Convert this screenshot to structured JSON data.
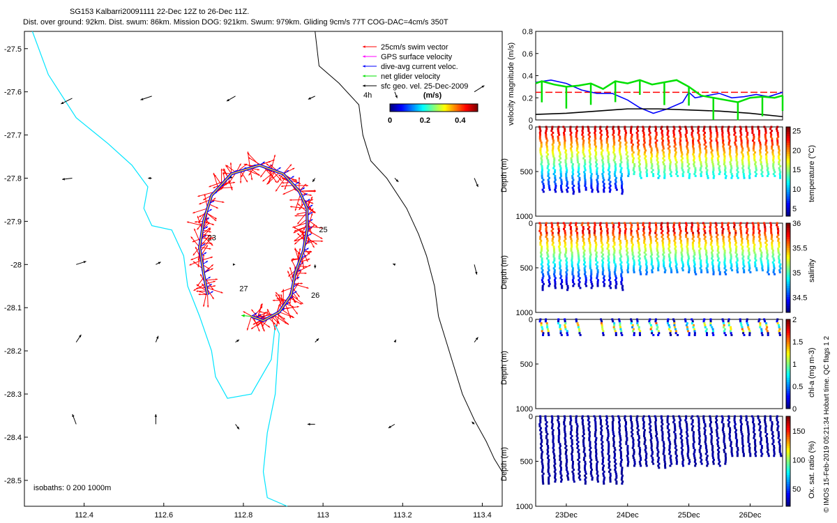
{
  "title": {
    "line1": "SG153 Kalbarri20091111 22-Dec 12Z to 26-Dec 11Z.",
    "line2": "Dist. over ground: 92km. Dist. swum: 86km. Mission DOG: 921km. Swum: 979km. Gliding 9cm/s 77T COG-DAC=4cm/s 350T"
  },
  "watermark": "© IMOS 15-Feb-2019 05:21:34 Hobart time. QC flags 1 2",
  "colors": {
    "coast": "#00e5ff",
    "swim": "#ff0000",
    "gps": "#ff00ff",
    "dac": "#0000ff",
    "net": "#00e000",
    "geo": "#000000",
    "track": "#ffd21a",
    "vel_red": "#ff0000"
  },
  "chart_data": [
    {
      "type": "scatter",
      "id": "map",
      "xlim": [
        112.25,
        113.45
      ],
      "ylim": [
        -28.56,
        -27.46
      ],
      "xticks": [
        "112.4",
        "112.6",
        "112.8",
        "113",
        "113.2",
        "113.4"
      ],
      "yticks": [
        "-27.5",
        "-27.6",
        "-27.7",
        "-27.8",
        "-27.9",
        "-28",
        "-28.1",
        "-28.2",
        "-28.3",
        "-28.4",
        "-28.5"
      ],
      "legend": [
        {
          "label": "25cm/s swim vector",
          "color": "#ff0000"
        },
        {
          "label": "GPS surface velocity",
          "color": "#ff00ff"
        },
        {
          "label": "dive-avg current veloc.",
          "color": "#0000ff"
        },
        {
          "label": "net glider velocity",
          "color": "#00e000"
        },
        {
          "label": "sfc geo. vel. 25-Dec-2009",
          "color": "#000000"
        }
      ],
      "legend_note": "4h",
      "colorbar": {
        "title": "(m/s)",
        "ticks": [
          "0",
          "0.2",
          "0.4"
        ],
        "range": [
          0,
          0.5
        ]
      },
      "isobaths_label": "isobaths: 0   200  1000m",
      "day_labels": [
        {
          "text": "23",
          "lon": 112.71,
          "lat": -27.944
        },
        {
          "text": "25",
          "lon": 112.99,
          "lat": -27.925
        },
        {
          "text": "27",
          "lon": 112.79,
          "lat": -28.062
        },
        {
          "text": "26",
          "lon": 112.97,
          "lat": -28.077
        }
      ],
      "coastline": [
        [
          112.27,
          -27.46
        ],
        [
          112.31,
          -27.56
        ],
        [
          112.38,
          -27.66
        ],
        [
          112.46,
          -27.72
        ],
        [
          112.52,
          -27.77
        ],
        [
          112.56,
          -27.82
        ],
        [
          112.55,
          -27.87
        ],
        [
          112.57,
          -27.91
        ],
        [
          112.62,
          -27.92
        ],
        [
          112.65,
          -27.98
        ],
        [
          112.66,
          -28.05
        ],
        [
          112.69,
          -28.12
        ],
        [
          112.72,
          -28.2
        ],
        [
          112.73,
          -28.26
        ],
        [
          112.76,
          -28.31
        ],
        [
          112.82,
          -28.3
        ],
        [
          112.87,
          -28.22
        ],
        [
          112.88,
          -28.14
        ],
        [
          112.89,
          -28.16
        ],
        [
          112.88,
          -28.3
        ],
        [
          112.86,
          -28.39
        ],
        [
          112.85,
          -28.48
        ],
        [
          112.86,
          -28.54
        ],
        [
          112.91,
          -28.56
        ]
      ],
      "isobath_1000": [
        [
          112.98,
          -27.46
        ],
        [
          112.99,
          -27.54
        ],
        [
          113.04,
          -27.58
        ],
        [
          113.09,
          -27.63
        ],
        [
          113.1,
          -27.7
        ],
        [
          113.12,
          -27.76
        ],
        [
          113.16,
          -27.8
        ],
        [
          113.21,
          -27.87
        ],
        [
          113.24,
          -27.93
        ],
        [
          113.26,
          -27.98
        ],
        [
          113.28,
          -28.05
        ],
        [
          113.29,
          -28.12
        ],
        [
          113.31,
          -28.18
        ],
        [
          113.33,
          -28.24
        ],
        [
          113.35,
          -28.3
        ],
        [
          113.38,
          -28.36
        ],
        [
          113.41,
          -28.41
        ],
        [
          113.43,
          -28.45
        ],
        [
          113.45,
          -28.48
        ]
      ],
      "glider_track": [
        [
          112.71,
          -28.07
        ],
        [
          112.7,
          -28.02
        ],
        [
          112.69,
          -27.96
        ],
        [
          112.7,
          -27.9
        ],
        [
          112.72,
          -27.84
        ],
        [
          112.77,
          -27.79
        ],
        [
          112.84,
          -27.77
        ],
        [
          112.9,
          -27.79
        ],
        [
          112.94,
          -27.83
        ],
        [
          112.96,
          -27.87
        ],
        [
          112.96,
          -27.92
        ],
        [
          112.95,
          -27.97
        ],
        [
          112.93,
          -28.02
        ],
        [
          112.92,
          -28.07
        ],
        [
          112.89,
          -28.11
        ],
        [
          112.85,
          -28.13
        ],
        [
          112.82,
          -28.12
        ]
      ],
      "geo_vectors": [
        {
          "lon": 112.37,
          "lat": -27.615,
          "u": 0.9,
          "v": -0.45
        },
        {
          "lon": 112.57,
          "lat": -27.61,
          "u": 0.9,
          "v": -0.3
        },
        {
          "lon": 112.78,
          "lat": -27.61,
          "u": 0.7,
          "v": -0.4
        },
        {
          "lon": 112.98,
          "lat": -27.61,
          "u": 0.55,
          "v": -0.25
        },
        {
          "lon": 113.18,
          "lat": -27.6,
          "u": -0.2,
          "v": -0.5
        },
        {
          "lon": 113.38,
          "lat": -27.6,
          "u": -0.8,
          "v": 0.5
        },
        {
          "lon": 112.37,
          "lat": -27.8,
          "u": 0.8,
          "v": -0.1
        },
        {
          "lon": 112.57,
          "lat": -27.8,
          "u": 0.3,
          "v": 0
        },
        {
          "lon": 112.77,
          "lat": -27.8,
          "u": 0.1,
          "v": 0.2
        },
        {
          "lon": 112.98,
          "lat": -27.8,
          "u": 0.2,
          "v": -0.3
        },
        {
          "lon": 113.18,
          "lat": -27.8,
          "u": -0.3,
          "v": -0.3
        },
        {
          "lon": 113.38,
          "lat": -27.8,
          "u": -0.3,
          "v": -0.7
        },
        {
          "lon": 112.38,
          "lat": -28,
          "u": -0.8,
          "v": 0.25
        },
        {
          "lon": 112.58,
          "lat": -28,
          "u": -0.4,
          "v": 0.2
        },
        {
          "lon": 112.78,
          "lat": -28,
          "u": 0,
          "v": 0
        },
        {
          "lon": 112.98,
          "lat": -28,
          "u": 0,
          "v": -0.3
        },
        {
          "lon": 113.18,
          "lat": -28,
          "u": 0.15,
          "v": 0.05
        },
        {
          "lon": 113.38,
          "lat": -28,
          "u": -0.2,
          "v": -0.8
        },
        {
          "lon": 112.38,
          "lat": -28.18,
          "u": -0.4,
          "v": 0.6
        },
        {
          "lon": 112.58,
          "lat": -28.18,
          "u": -0.2,
          "v": 0.5
        },
        {
          "lon": 112.78,
          "lat": -28.18,
          "u": -0.3,
          "v": 0.2
        },
        {
          "lon": 112.98,
          "lat": -28.18,
          "u": -0.3,
          "v": 0.3
        },
        {
          "lon": 113.18,
          "lat": -28.18,
          "u": -0.1,
          "v": 0.2
        },
        {
          "lon": 113.38,
          "lat": -28.18,
          "u": -0.3,
          "v": 0.4
        },
        {
          "lon": 112.38,
          "lat": -28.37,
          "u": 0.3,
          "v": 0.8
        },
        {
          "lon": 112.58,
          "lat": -28.37,
          "u": 0,
          "v": 0.8
        },
        {
          "lon": 112.78,
          "lat": -28.37,
          "u": -0.3,
          "v": -0.4
        },
        {
          "lon": 112.98,
          "lat": -28.37,
          "u": 0.6,
          "v": 0
        },
        {
          "lon": 113.18,
          "lat": -28.37,
          "u": 0.5,
          "v": -0.3
        },
        {
          "lon": 113.38,
          "lat": -28.37,
          "u": 0.2,
          "v": 0.2
        }
      ]
    },
    {
      "type": "line",
      "id": "velocity",
      "ylabel": "velocity magnitude (m/s)",
      "xlim": [
        22.5,
        26.53
      ],
      "ylim": [
        0,
        0.8
      ],
      "yticks": [
        "0",
        "0.2",
        "0.4",
        "0.6",
        "0.8"
      ],
      "red_dashed": 0.25,
      "series": [
        {
          "name": "dive-avg current",
          "color": "#0000ff",
          "x": [
            22.5,
            22.75,
            23.0,
            23.25,
            23.5,
            23.75,
            24.0,
            24.2,
            24.42,
            24.65,
            24.9,
            25.0,
            25.1,
            25.3,
            25.5,
            25.7,
            25.9,
            26.1,
            26.3,
            26.53
          ],
          "y": [
            0.34,
            0.36,
            0.33,
            0.27,
            0.24,
            0.24,
            0.18,
            0.11,
            0.06,
            0.1,
            0.16,
            0.25,
            0.2,
            0.22,
            0.24,
            0.2,
            0.21,
            0.23,
            0.21,
            0.25
          ]
        },
        {
          "name": "net glider velocity",
          "color": "#00e000",
          "x": [
            22.5,
            22.6,
            22.8,
            23.0,
            23.2,
            23.4,
            23.6,
            23.8,
            24.0,
            24.2,
            24.4,
            24.6,
            24.8,
            25.0,
            25.2,
            25.4,
            25.6,
            25.8,
            26.0,
            26.2,
            26.4,
            26.53
          ],
          "y": [
            0.33,
            0.35,
            0.32,
            0.3,
            0.31,
            0.33,
            0.28,
            0.35,
            0.33,
            0.36,
            0.32,
            0.34,
            0.36,
            0.3,
            0.22,
            0.2,
            0.18,
            0.16,
            0.2,
            0.21,
            0.2,
            0.22
          ]
        },
        {
          "name": "sfc geo",
          "color": "#000000",
          "x": [
            22.5,
            23.0,
            23.5,
            24.0,
            24.5,
            25.0,
            25.5,
            26.0,
            26.53
          ],
          "y": [
            0.05,
            0.06,
            0.08,
            0.1,
            0.1,
            0.09,
            0.08,
            0.06,
            0.03
          ]
        }
      ]
    },
    {
      "type": "scatter",
      "id": "temperature",
      "ylabel": "Depth (m)",
      "ylim": [
        0,
        1000
      ],
      "yticks": [
        "0",
        "500",
        "1000"
      ],
      "colorbar_label": "temperature (°C)",
      "colorbar_ticks": [
        "5",
        "10",
        "15",
        "20",
        "25"
      ],
      "crange": [
        3,
        26
      ]
    },
    {
      "type": "scatter",
      "id": "salinity",
      "ylabel": "Depth (m)",
      "ylim": [
        0,
        1000
      ],
      "yticks": [
        "0",
        "500",
        "1000"
      ],
      "colorbar_label": "salinity",
      "colorbar_ticks": [
        "34.5",
        "35",
        "35.5",
        "36"
      ],
      "crange": [
        34.2,
        36
      ]
    },
    {
      "type": "scatter",
      "id": "chla",
      "ylabel": "Depth (m)",
      "ylim": [
        0,
        1000
      ],
      "yticks": [
        "0",
        "500",
        "1000"
      ],
      "colorbar_label": "chl-a (mg m-3)",
      "colorbar_ticks": [
        "0",
        "0.5",
        "1",
        "1.5",
        "2"
      ],
      "crange": [
        0,
        2
      ]
    },
    {
      "type": "scatter",
      "id": "oxygen",
      "ylabel": "Depth (m)",
      "ylim": [
        0,
        1000
      ],
      "yticks": [
        "0",
        "500",
        "1000"
      ],
      "colorbar_label": "Ox. sat. ratio (%)",
      "colorbar_ticks": [
        "50",
        "100",
        "150"
      ],
      "crange": [
        20,
        175
      ],
      "xticks": [
        "23Dec",
        "24Dec",
        "25Dec",
        "26Dec"
      ],
      "xtick_values": [
        23,
        24,
        25,
        26
      ]
    }
  ]
}
